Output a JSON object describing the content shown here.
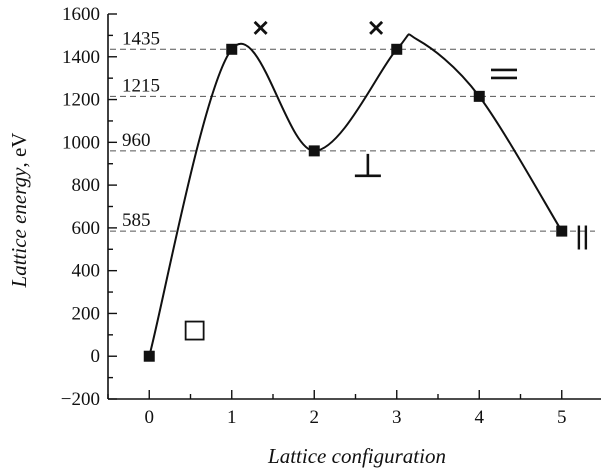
{
  "chart_data": {
    "type": "line",
    "xlabel": "Lattice configuration",
    "ylabel_italic": "Lattice energy",
    "ylabel_unit": ", eV",
    "xlim": [
      -0.5,
      5.5
    ],
    "ylim": [
      -200,
      1600
    ],
    "x_ticks": [
      "0",
      "1",
      "2",
      "3",
      "4",
      "5"
    ],
    "y_ticks": [
      "−200",
      "0",
      "200",
      "400",
      "600",
      "800",
      "1000",
      "1200",
      "1400",
      "1600"
    ],
    "y_tick_values": [
      -200,
      0,
      200,
      400,
      600,
      800,
      1000,
      1200,
      1400,
      1600
    ],
    "x_tick_values": [
      0,
      1,
      2,
      3,
      4,
      5
    ],
    "points": [
      {
        "x": 0,
        "y": 0
      },
      {
        "x": 1,
        "y": 1435
      },
      {
        "x": 2,
        "y": 960
      },
      {
        "x": 3,
        "y": 1435
      },
      {
        "x": 4,
        "y": 1215
      },
      {
        "x": 5,
        "y": 585
      }
    ],
    "curve_peak": {
      "x": 3.25,
      "y": 1480
    },
    "reference_lines": [
      {
        "value": 1435,
        "label": "1435"
      },
      {
        "value": 1215,
        "label": "1215"
      },
      {
        "value": 960,
        "label": "960"
      },
      {
        "value": 585,
        "label": "585"
      }
    ],
    "configuration_glyphs": [
      {
        "name": "vacancy-square-icon",
        "x": 0.55,
        "y": 120
      },
      {
        "name": "cross-icon-1",
        "x": 1.35,
        "y": 1535
      },
      {
        "name": "cross-icon-2",
        "x": 2.75,
        "y": 1535
      },
      {
        "name": "perpendicular-icon",
        "x": 2.65,
        "y": 890
      },
      {
        "name": "double-horizontal-icon",
        "x": 4.3,
        "y": 1320
      },
      {
        "name": "double-vertical-icon",
        "x": 5.25,
        "y": 555
      }
    ]
  }
}
